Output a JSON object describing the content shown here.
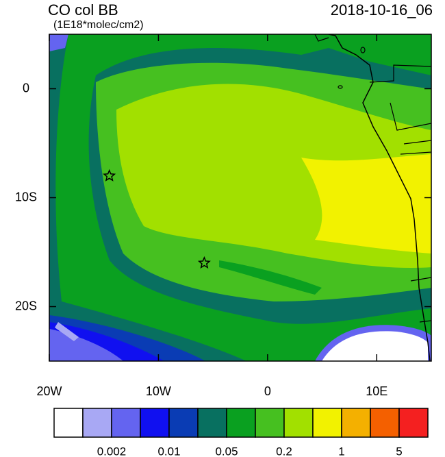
{
  "chart_data": {
    "type": "map",
    "title": "CO col BB",
    "subtitle": "(1E18*molec/cm2)",
    "time": "2018-10-16_06",
    "xlim": [
      -20,
      15
    ],
    "ylim": [
      -25,
      5
    ],
    "xticks": [
      {
        "value": -20,
        "label": "20W"
      },
      {
        "value": -10,
        "label": "10W"
      },
      0,
      {
        "value": 10,
        "label": "10E"
      }
    ],
    "yticks": [
      0,
      {
        "value": -10,
        "label": "10S"
      },
      {
        "value": -20,
        "label": "20S"
      }
    ],
    "markers": {
      "lon": [
        -14.5,
        -5.8
      ],
      "lat": [
        -8,
        -16
      ]
    },
    "colorbar": {
      "colors": [
        "#ffffff",
        "#a8a8f4",
        "#6464f0",
        "#1010f0",
        "#0a3cb4",
        "#087060",
        "#0aa020",
        "#46c020",
        "#a2e000",
        "#f2f200",
        "#f4b000",
        "#f46000",
        "#f42020"
      ],
      "labels": [
        0.002,
        0.01,
        0.05,
        0.2,
        1,
        5
      ]
    }
  }
}
